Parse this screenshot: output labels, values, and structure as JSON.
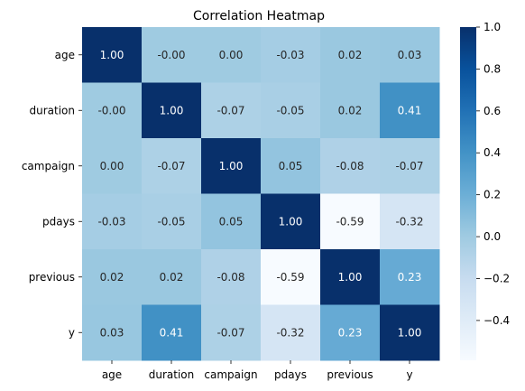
{
  "chart_data": {
    "type": "heatmap",
    "title": "Correlation Heatmap",
    "xlabel": "",
    "ylabel": "",
    "x_categories": [
      "age",
      "duration",
      "campaign",
      "pdays",
      "previous",
      "y"
    ],
    "y_categories": [
      "age",
      "duration",
      "campaign",
      "pdays",
      "previous",
      "y"
    ],
    "values": [
      [
        1.0,
        -0.0,
        0.0,
        -0.03,
        0.02,
        0.03
      ],
      [
        -0.0,
        1.0,
        -0.07,
        -0.05,
        0.02,
        0.41
      ],
      [
        0.0,
        -0.07,
        1.0,
        0.05,
        -0.08,
        -0.07
      ],
      [
        -0.03,
        -0.05,
        0.05,
        1.0,
        -0.59,
        -0.32
      ],
      [
        0.02,
        0.02,
        -0.08,
        -0.59,
        1.0,
        0.23
      ],
      [
        0.03,
        0.41,
        -0.07,
        -0.32,
        0.23,
        1.0
      ]
    ],
    "value_labels": [
      [
        "1.00",
        "-0.00",
        "0.00",
        "-0.03",
        "0.02",
        "0.03"
      ],
      [
        "-0.00",
        "1.00",
        "-0.07",
        "-0.05",
        "0.02",
        "0.41"
      ],
      [
        "0.00",
        "-0.07",
        "1.00",
        "0.05",
        "-0.08",
        "-0.07"
      ],
      [
        "-0.03",
        "-0.05",
        "0.05",
        "1.00",
        "-0.59",
        "-0.32"
      ],
      [
        "0.02",
        "0.02",
        "-0.08",
        "-0.59",
        "1.00",
        "0.23"
      ],
      [
        "0.03",
        "0.41",
        "-0.07",
        "-0.32",
        "0.23",
        "1.00"
      ]
    ],
    "colormap": "Blues",
    "color_range": [
      -0.59,
      1.0
    ],
    "colorbar": {
      "ticks": [
        1.0,
        0.8,
        0.6,
        0.4,
        0.2,
        0.0,
        -0.2,
        -0.4
      ],
      "tick_labels": [
        "1.0",
        "0.8",
        "0.6",
        "0.4",
        "0.2",
        "0.0",
        "−0.2",
        "−0.4"
      ]
    },
    "colors": {
      "low": "#f7fbff",
      "high": "#08306b",
      "dark_text": "#262626",
      "light_text": "#ffffff"
    }
  }
}
